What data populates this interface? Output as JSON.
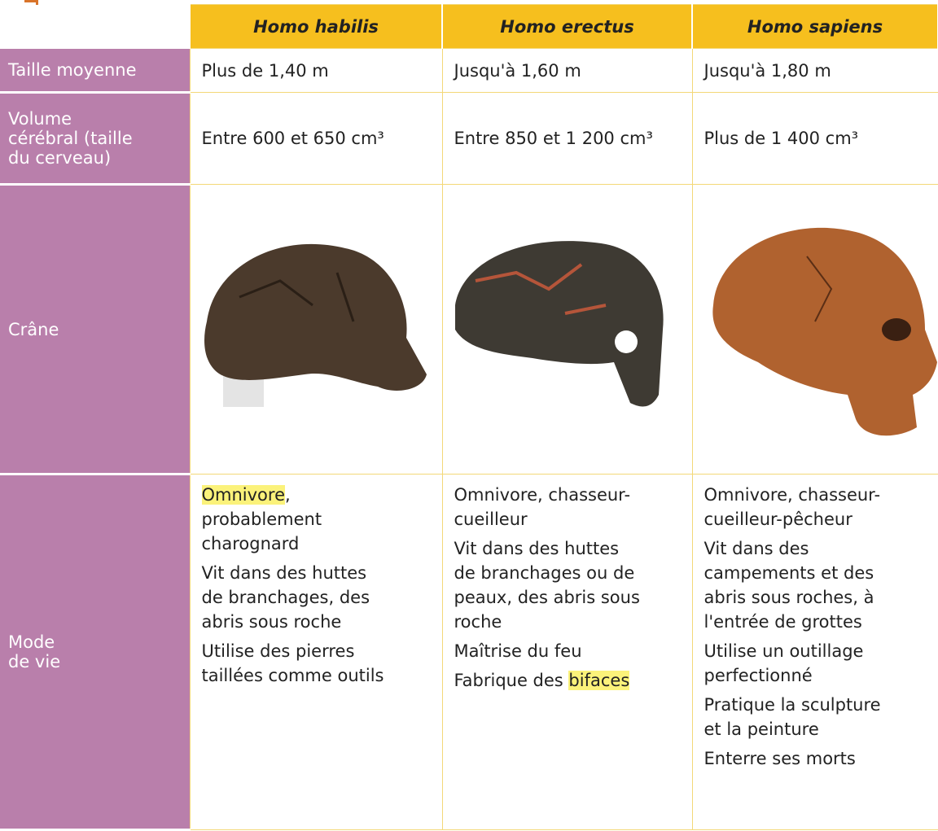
{
  "table": {
    "header": [
      "Homo habilis",
      "Homo erectus",
      "Homo sapiens"
    ],
    "rows": [
      {
        "label": "Taille moyenne",
        "cells": [
          "Plus de 1,40 m",
          "Jusqu'à 1,60 m",
          "Jusqu'à 1,80 m"
        ]
      },
      {
        "label": "Volume\ncérébral (taille\ndu cerveau)",
        "cells": [
          "Entre 600 et 650 cm³",
          "Entre 850 et 1 200 cm³",
          "Plus de 1 400 cm³"
        ]
      },
      {
        "label": "Crâne"
      },
      {
        "label": "Mode\nde vie",
        "cells": [
          [
            [
              {
                "text": "Omnivore",
                "highlight": true
              },
              ",\nprobablement\ncharognard"
            ],
            [
              "Vit dans des huttes\nde branchages, des\nabris sous roche"
            ],
            [
              "Utilise des pierres\ntaillées comme outils"
            ]
          ],
          [
            [
              "Omnivore, chasseur-\ncueilleur"
            ],
            [
              "Vit dans des huttes\nde branchages ou de\npeaux, des abris sous\nroche"
            ],
            [
              "Maîtrise du feu"
            ],
            [
              "Fabrique des ",
              {
                "text": "bifaces",
                "highlight": true
              }
            ]
          ],
          [
            [
              "Omnivore, chasseur-\ncueilleur-pêcheur"
            ],
            [
              "Vit dans des\ncampements et des\nabris sous roches, à\nl'entrée de grottes"
            ],
            [
              "Utilise un outillage\nperfectionné"
            ],
            [
              "Pratique la sculpture\net la peinture"
            ],
            [
              "Enterre ses morts"
            ]
          ]
        ]
      }
    ]
  }
}
